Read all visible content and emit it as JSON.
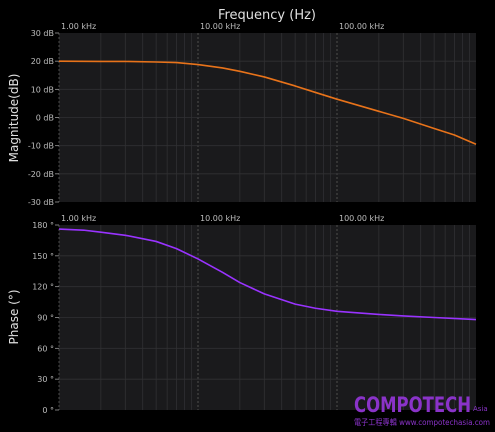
{
  "chart_data": [
    {
      "type": "line",
      "title": "",
      "xlabel": "Frequency (Hz)",
      "ylabel": "Magnitude(dB)",
      "xscale": "log",
      "xlim": [
        1000,
        1000000
      ],
      "ylim": [
        -30,
        30
      ],
      "x_ticks": [
        "1.00 kHz",
        "10.00 kHz",
        "100.00 kHz"
      ],
      "y_ticks": [
        "30 dB",
        "20 dB",
        "10 dB",
        "0 dB",
        "-10 dB",
        "-20 dB",
        "-30 dB"
      ],
      "grid": true,
      "series": [
        {
          "color": "#e8731a",
          "x": [
            1000,
            2000,
            3000,
            5000,
            7000,
            10000,
            15000,
            20000,
            30000,
            50000,
            70000,
            100000,
            200000,
            300000,
            500000,
            700000,
            1000000
          ],
          "y": [
            20,
            19.9,
            19.9,
            19.7,
            19.5,
            18.8,
            17.6,
            16.4,
            14.4,
            11.2,
            8.9,
            6.5,
            2.2,
            -0.3,
            -3.9,
            -6.2,
            -9.5
          ]
        }
      ]
    },
    {
      "type": "line",
      "title": "",
      "xlabel": "",
      "ylabel": "Phase (°)",
      "xscale": "log",
      "xlim": [
        1000,
        1000000
      ],
      "ylim": [
        0,
        180
      ],
      "x_ticks": [
        "1.00 kHz",
        "10.00 kHz",
        "100.00 kHz"
      ],
      "y_ticks": [
        "180 °",
        "150 °",
        "120 °",
        "90 °",
        "60 °",
        "30 °",
        "0 °"
      ],
      "grid": true,
      "series": [
        {
          "color": "#9933ff",
          "x": [
            1000,
            1500,
            2000,
            3000,
            5000,
            7000,
            10000,
            15000,
            20000,
            30000,
            50000,
            70000,
            100000,
            200000,
            300000,
            500000,
            1000000
          ],
          "y": [
            176,
            175,
            173,
            170,
            164,
            157,
            147,
            134,
            124,
            113,
            103,
            99,
            96,
            93,
            91.5,
            90,
            88
          ]
        }
      ]
    }
  ],
  "watermark": {
    "logo": "COMPOTECH",
    "logo_suffix": "Asia",
    "tagline": "電子工程專輯 www.compotechasia.com"
  }
}
